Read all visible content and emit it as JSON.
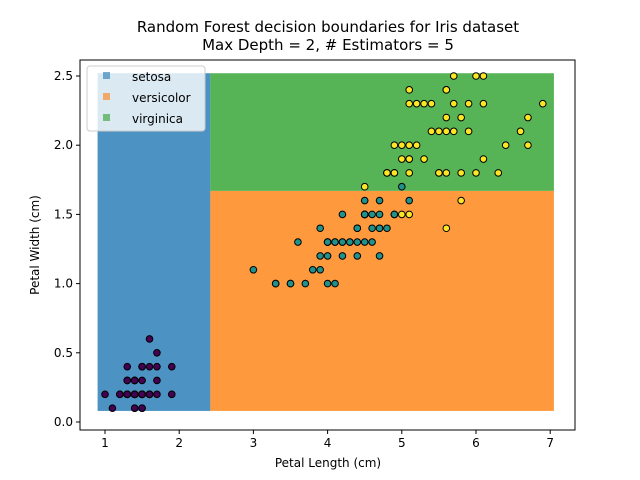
{
  "chart_data": {
    "type": "scatter",
    "title": "Random Forest decision boundaries for Iris dataset",
    "subtitle": "Max Depth = 2, # Estimators = 5",
    "xlabel": "Petal Length (cm)",
    "ylabel": "Petal Width (cm)",
    "xlim": [
      0.7,
      7.35
    ],
    "ylim": [
      -0.04,
      2.64
    ],
    "xticks": [
      "1",
      "2",
      "3",
      "4",
      "5",
      "6",
      "7"
    ],
    "yticks": [
      "0.0",
      "0.5",
      "1.0",
      "1.5",
      "2.0",
      "2.5"
    ],
    "legend_position": "top-left",
    "legend": [
      {
        "label": "setosa",
        "color": "#1f77b4"
      },
      {
        "label": "versicolor",
        "color": "#ff7f0e"
      },
      {
        "label": "virginica",
        "color": "#2ca02c"
      }
    ],
    "regions": [
      {
        "class": "setosa",
        "color": "#1f77b4",
        "x": [
          0.9,
          2.42
        ],
        "y": [
          0.08,
          2.52
        ]
      },
      {
        "class": "versicolor",
        "color": "#ff7f0e",
        "x": [
          2.42,
          7.05
        ],
        "y": [
          0.08,
          1.67
        ]
      },
      {
        "class": "virginica",
        "color": "#2ca02c",
        "x": [
          2.42,
          7.05
        ],
        "y": [
          1.67,
          2.52
        ]
      }
    ],
    "series": [
      {
        "name": "setosa",
        "color": "#440154",
        "points": [
          [
            1.4,
            0.2
          ],
          [
            1.4,
            0.2
          ],
          [
            1.3,
            0.2
          ],
          [
            1.5,
            0.2
          ],
          [
            1.4,
            0.2
          ],
          [
            1.7,
            0.4
          ],
          [
            1.4,
            0.3
          ],
          [
            1.5,
            0.2
          ],
          [
            1.4,
            0.2
          ],
          [
            1.5,
            0.1
          ],
          [
            1.5,
            0.2
          ],
          [
            1.6,
            0.2
          ],
          [
            1.4,
            0.1
          ],
          [
            1.1,
            0.1
          ],
          [
            1.2,
            0.2
          ],
          [
            1.5,
            0.4
          ],
          [
            1.3,
            0.4
          ],
          [
            1.4,
            0.3
          ],
          [
            1.7,
            0.3
          ],
          [
            1.5,
            0.3
          ],
          [
            1.7,
            0.2
          ],
          [
            1.5,
            0.4
          ],
          [
            1.0,
            0.2
          ],
          [
            1.7,
            0.5
          ],
          [
            1.9,
            0.2
          ],
          [
            1.6,
            0.2
          ],
          [
            1.6,
            0.4
          ],
          [
            1.5,
            0.2
          ],
          [
            1.4,
            0.2
          ],
          [
            1.6,
            0.2
          ],
          [
            1.6,
            0.2
          ],
          [
            1.5,
            0.4
          ],
          [
            1.5,
            0.1
          ],
          [
            1.4,
            0.2
          ],
          [
            1.5,
            0.2
          ],
          [
            1.2,
            0.2
          ],
          [
            1.3,
            0.2
          ],
          [
            1.4,
            0.1
          ],
          [
            1.3,
            0.2
          ],
          [
            1.5,
            0.2
          ],
          [
            1.3,
            0.3
          ],
          [
            1.3,
            0.3
          ],
          [
            1.3,
            0.2
          ],
          [
            1.6,
            0.6
          ],
          [
            1.9,
            0.4
          ],
          [
            1.4,
            0.3
          ],
          [
            1.6,
            0.2
          ],
          [
            1.4,
            0.2
          ],
          [
            1.5,
            0.2
          ],
          [
            1.4,
            0.2
          ]
        ]
      },
      {
        "name": "versicolor",
        "color": "#21918c",
        "points": [
          [
            4.7,
            1.4
          ],
          [
            4.5,
            1.5
          ],
          [
            4.9,
            1.5
          ],
          [
            4.0,
            1.3
          ],
          [
            4.6,
            1.5
          ],
          [
            4.5,
            1.3
          ],
          [
            4.7,
            1.6
          ],
          [
            3.3,
            1.0
          ],
          [
            4.6,
            1.3
          ],
          [
            3.9,
            1.4
          ],
          [
            3.5,
            1.0
          ],
          [
            4.2,
            1.5
          ],
          [
            4.0,
            1.0
          ],
          [
            4.7,
            1.4
          ],
          [
            3.6,
            1.3
          ],
          [
            4.4,
            1.4
          ],
          [
            4.5,
            1.5
          ],
          [
            4.1,
            1.0
          ],
          [
            4.5,
            1.5
          ],
          [
            3.9,
            1.1
          ],
          [
            4.8,
            1.8
          ],
          [
            4.0,
            1.3
          ],
          [
            4.9,
            1.5
          ],
          [
            4.7,
            1.2
          ],
          [
            4.3,
            1.3
          ],
          [
            4.4,
            1.4
          ],
          [
            4.8,
            1.4
          ],
          [
            5.0,
            1.7
          ],
          [
            4.5,
            1.5
          ],
          [
            3.5,
            1.0
          ],
          [
            3.8,
            1.1
          ],
          [
            3.7,
            1.0
          ],
          [
            3.9,
            1.2
          ],
          [
            5.1,
            1.6
          ],
          [
            4.5,
            1.5
          ],
          [
            4.5,
            1.6
          ],
          [
            4.7,
            1.5
          ],
          [
            4.4,
            1.3
          ],
          [
            4.1,
            1.3
          ],
          [
            4.0,
            1.3
          ],
          [
            4.4,
            1.2
          ],
          [
            4.6,
            1.4
          ],
          [
            4.0,
            1.2
          ],
          [
            3.3,
            1.0
          ],
          [
            4.2,
            1.3
          ],
          [
            4.2,
            1.2
          ],
          [
            4.2,
            1.3
          ],
          [
            4.3,
            1.3
          ],
          [
            3.0,
            1.1
          ],
          [
            4.1,
            1.3
          ]
        ]
      },
      {
        "name": "virginica",
        "color": "#fde725",
        "points": [
          [
            6.0,
            2.5
          ],
          [
            5.1,
            1.9
          ],
          [
            5.9,
            2.1
          ],
          [
            5.6,
            1.8
          ],
          [
            5.8,
            2.2
          ],
          [
            6.6,
            2.1
          ],
          [
            4.5,
            1.7
          ],
          [
            6.3,
            1.8
          ],
          [
            5.8,
            1.8
          ],
          [
            6.1,
            2.5
          ],
          [
            5.1,
            2.0
          ],
          [
            5.3,
            1.9
          ],
          [
            5.5,
            2.1
          ],
          [
            5.0,
            2.0
          ],
          [
            5.1,
            2.4
          ],
          [
            5.3,
            2.3
          ],
          [
            5.5,
            1.8
          ],
          [
            6.7,
            2.2
          ],
          [
            6.9,
            2.3
          ],
          [
            5.0,
            1.5
          ],
          [
            5.7,
            2.3
          ],
          [
            4.9,
            2.0
          ],
          [
            6.7,
            2.0
          ],
          [
            4.9,
            1.8
          ],
          [
            5.7,
            2.1
          ],
          [
            6.0,
            1.8
          ],
          [
            4.8,
            1.8
          ],
          [
            4.9,
            1.8
          ],
          [
            5.6,
            2.1
          ],
          [
            5.8,
            1.6
          ],
          [
            6.1,
            1.9
          ],
          [
            6.4,
            2.0
          ],
          [
            5.6,
            2.2
          ],
          [
            5.1,
            1.5
          ],
          [
            5.6,
            1.4
          ],
          [
            6.1,
            2.3
          ],
          [
            5.6,
            2.4
          ],
          [
            5.5,
            1.8
          ],
          [
            4.8,
            1.8
          ],
          [
            5.4,
            2.1
          ],
          [
            5.6,
            2.4
          ],
          [
            5.1,
            2.3
          ],
          [
            5.1,
            1.9
          ],
          [
            5.9,
            2.3
          ],
          [
            5.7,
            2.5
          ],
          [
            5.2,
            2.3
          ],
          [
            5.0,
            1.9
          ],
          [
            5.2,
            2.0
          ],
          [
            5.4,
            2.3
          ],
          [
            5.1,
            1.8
          ]
        ]
      }
    ]
  }
}
